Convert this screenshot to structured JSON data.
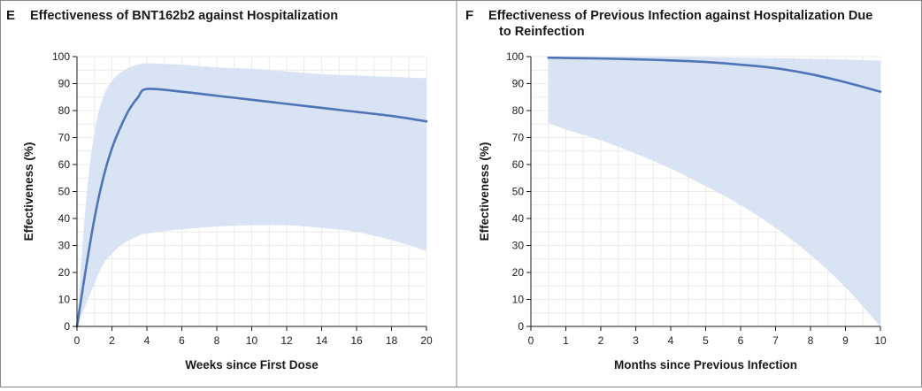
{
  "panels": [
    {
      "letter": "E",
      "title_lines": [
        "Effectiveness of BNT162b2 against Hospitalization"
      ]
    },
    {
      "letter": "F",
      "title_lines": [
        "Effectiveness of Previous Infection against Hospitalization Due",
        "to Reinfection"
      ]
    }
  ],
  "colors": {
    "line": "#4f74b8",
    "band": "#d6e1f3",
    "grid": "#ececec",
    "frame": "#8a8a8a",
    "axis": "#1a1a1a"
  },
  "chart_data": [
    {
      "type": "line",
      "title": "Effectiveness of BNT162b2 against Hospitalization",
      "xlabel": "Weeks since First Dose",
      "ylabel": "Effectiveness (%)",
      "xlim": [
        0,
        20
      ],
      "ylim": [
        0,
        100
      ],
      "xticks": [
        0,
        2,
        4,
        6,
        8,
        10,
        12,
        14,
        16,
        18,
        20
      ],
      "yticks": [
        0,
        10,
        20,
        30,
        40,
        50,
        60,
        70,
        80,
        90,
        100
      ],
      "grid": true,
      "x": [
        0,
        0.5,
        1,
        1.5,
        2,
        2.5,
        3,
        3.5,
        4,
        6,
        8,
        10,
        12,
        14,
        16,
        18,
        20
      ],
      "y": [
        0,
        21,
        40,
        55,
        66,
        74,
        80.5,
        85,
        88,
        87,
        85.5,
        84,
        82.5,
        81,
        79.5,
        78,
        76
      ],
      "ci_lower": [
        0,
        8,
        16,
        23,
        27,
        30,
        32,
        33.5,
        34.5,
        36,
        37,
        37.5,
        37.5,
        36.5,
        35,
        32,
        28
      ],
      "ci_upper": [
        0,
        45,
        72,
        85,
        91,
        94,
        96,
        97,
        97.5,
        97,
        96,
        95.5,
        94.5,
        93.5,
        93,
        92.5,
        92
      ]
    },
    {
      "type": "line",
      "title": "Effectiveness of Previous Infection against Hospitalization Due to Reinfection",
      "xlabel": "Months since Previous Infection",
      "ylabel": "Effectiveness (%)",
      "xlim": [
        0,
        10
      ],
      "ylim": [
        0,
        100
      ],
      "xticks": [
        0,
        1,
        2,
        3,
        4,
        5,
        6,
        7,
        8,
        9,
        10
      ],
      "yticks": [
        0,
        10,
        20,
        30,
        40,
        50,
        60,
        70,
        80,
        90,
        100
      ],
      "grid": true,
      "x": [
        0.5,
        1,
        2,
        3,
        4,
        5,
        6,
        7,
        8,
        9,
        10
      ],
      "y": [
        99.6,
        99.5,
        99.3,
        99,
        98.6,
        98,
        97,
        95.7,
        93.5,
        90.5,
        87
      ],
      "ci_lower": [
        75.5,
        73,
        69,
        64,
        58.5,
        52,
        45,
        36.5,
        26.5,
        14.5,
        0
      ],
      "ci_upper": [
        100,
        100,
        100,
        100,
        100,
        99.8,
        99.6,
        99.4,
        99.2,
        98.9,
        98.5
      ]
    }
  ]
}
